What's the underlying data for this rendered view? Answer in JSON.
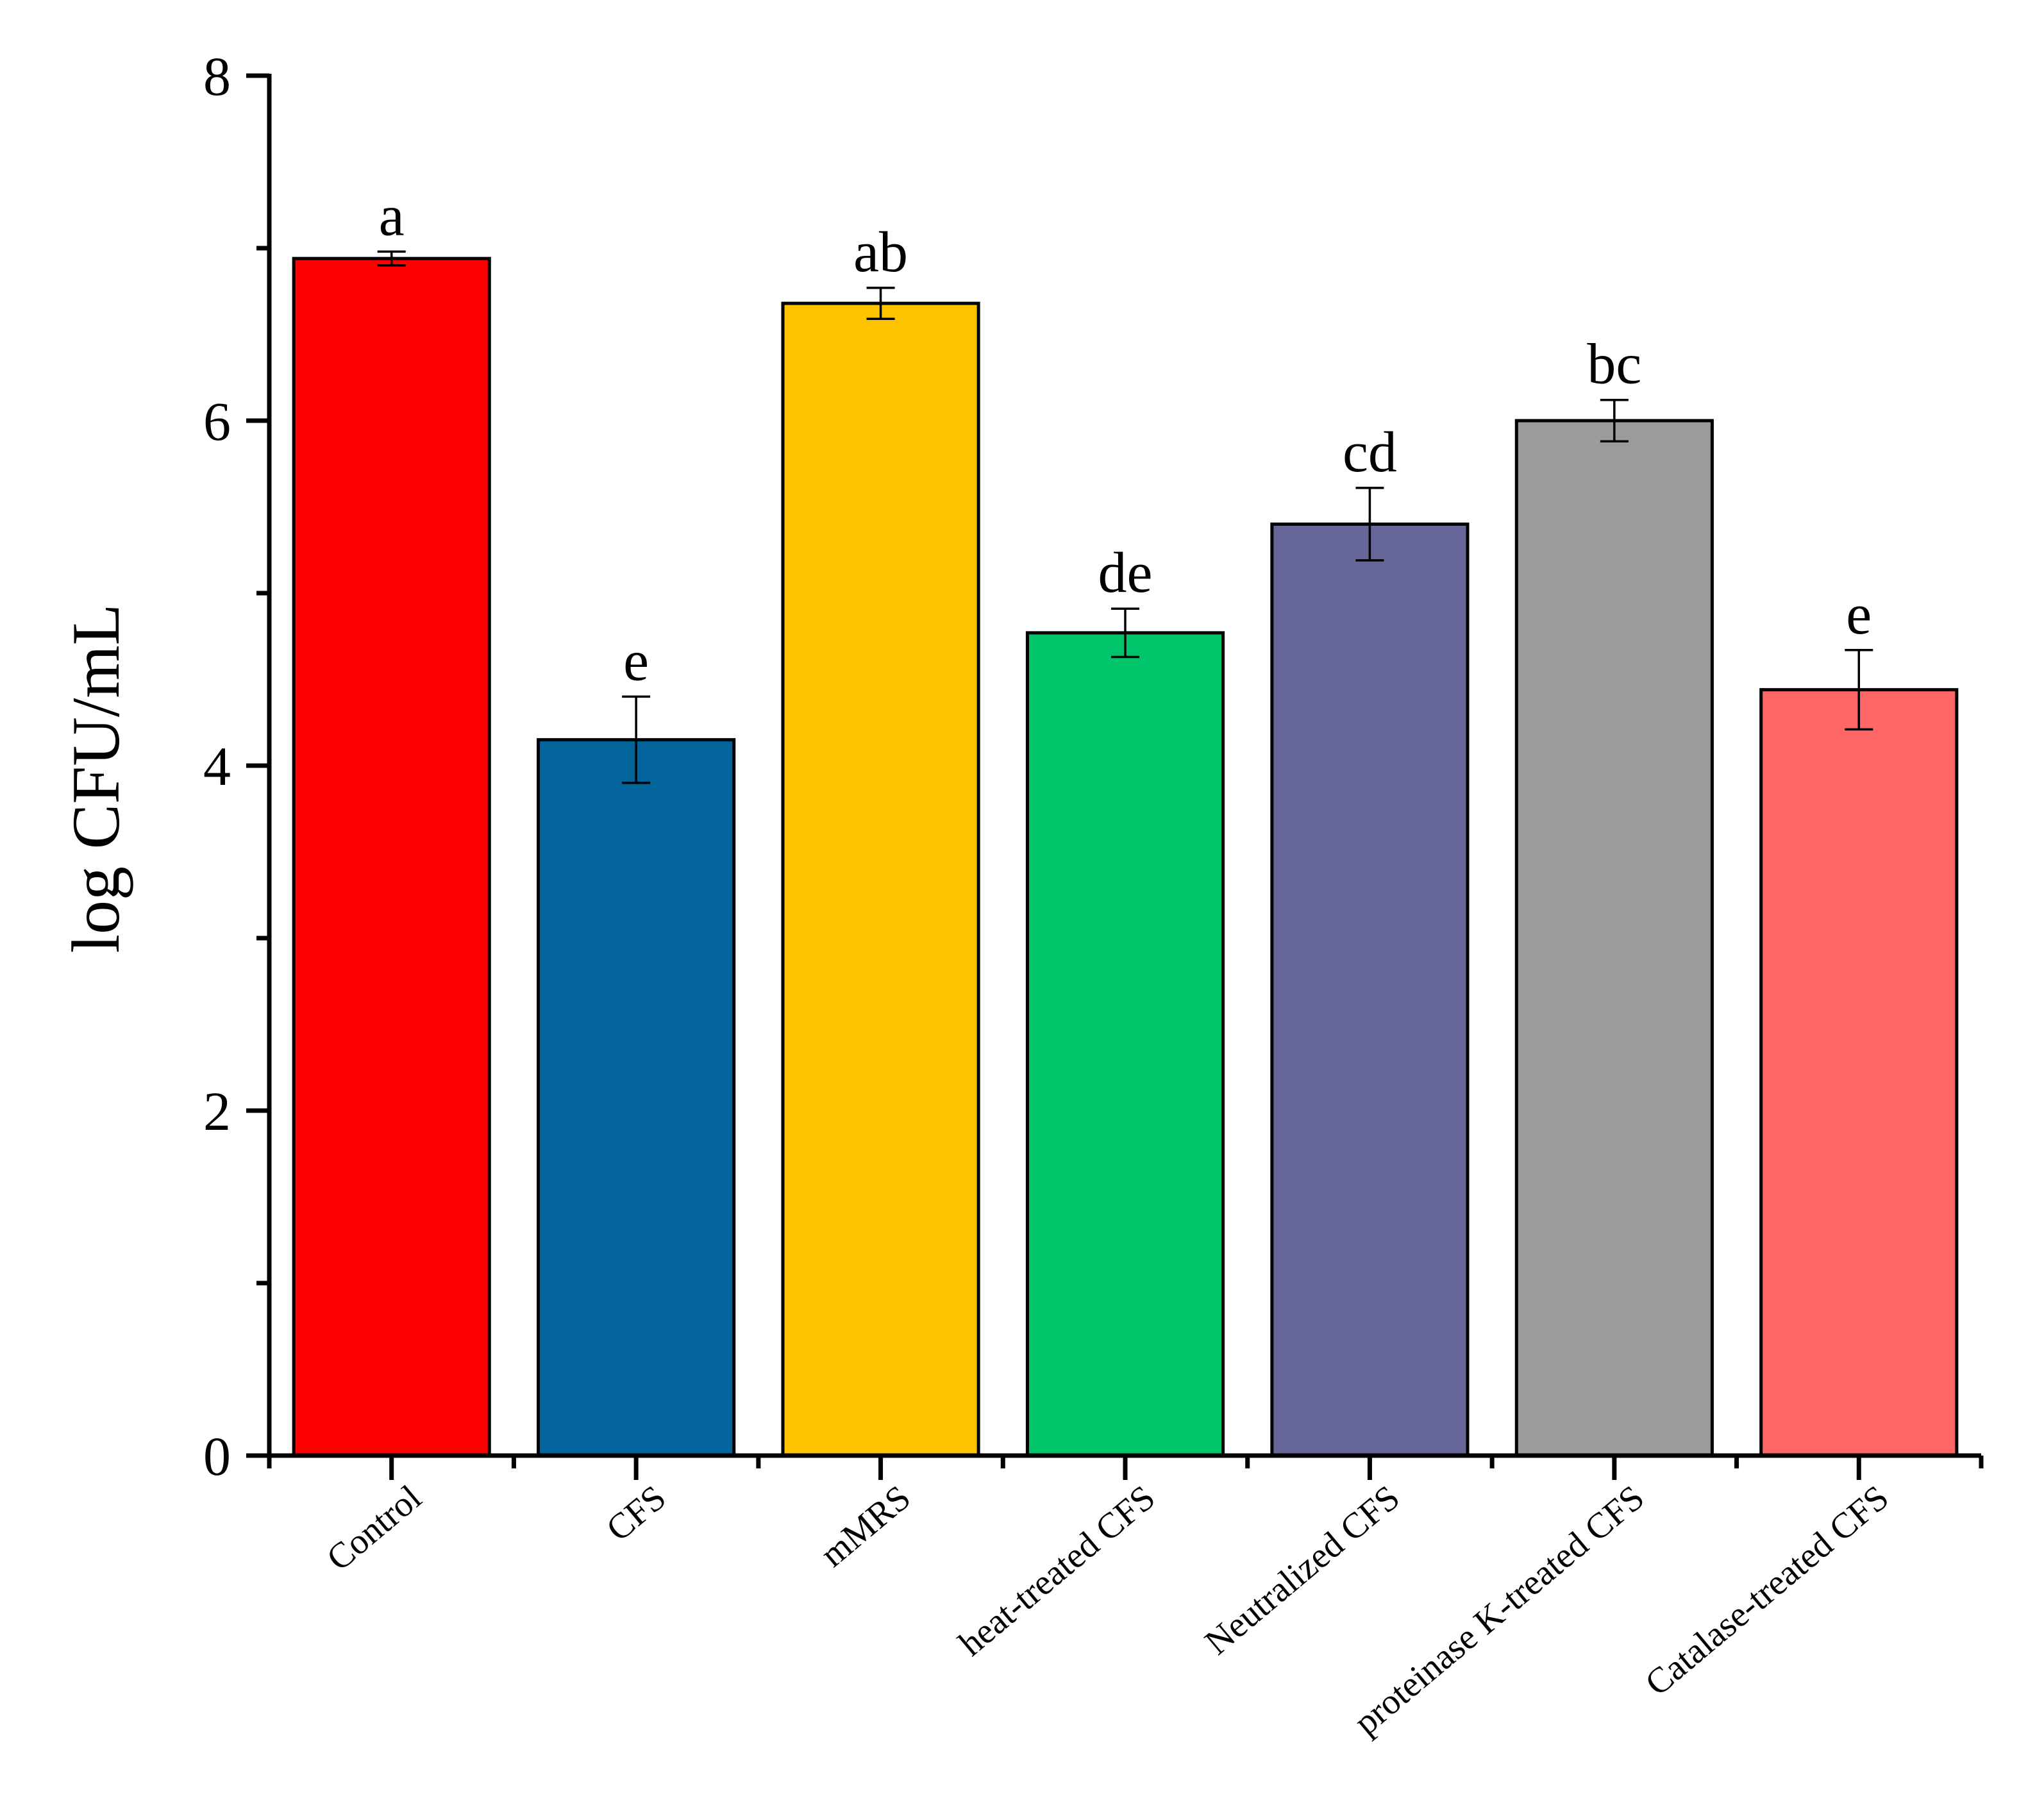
{
  "chart_data": {
    "type": "bar",
    "title": "",
    "xlabel": "",
    "ylabel": "log CFU/mL",
    "ylim": [
      0,
      8
    ],
    "yticks": [
      0,
      2,
      4,
      6,
      8
    ],
    "ytick_labels": [
      "0",
      "2",
      "4",
      "6",
      "8"
    ],
    "grid": false,
    "legend": "none",
    "categories": [
      "Control",
      "CFS",
      "mMRS",
      "heat-treated CFS",
      "Neutralized CFS",
      "proteinase K-treated CFS",
      "Catalase-treated CFS"
    ],
    "values": [
      6.94,
      4.15,
      6.68,
      4.77,
      5.4,
      6.0,
      4.44
    ],
    "errors": [
      0.04,
      0.25,
      0.09,
      0.14,
      0.21,
      0.12,
      0.23
    ],
    "annotations": [
      "a",
      "e",
      "ab",
      "de",
      "cd",
      "bc",
      "e"
    ],
    "colors": [
      "#ff0000",
      "#02649b",
      "#fdc300",
      "#01c56b",
      "#676699",
      "#9b9b9b",
      "#ff6666"
    ]
  }
}
